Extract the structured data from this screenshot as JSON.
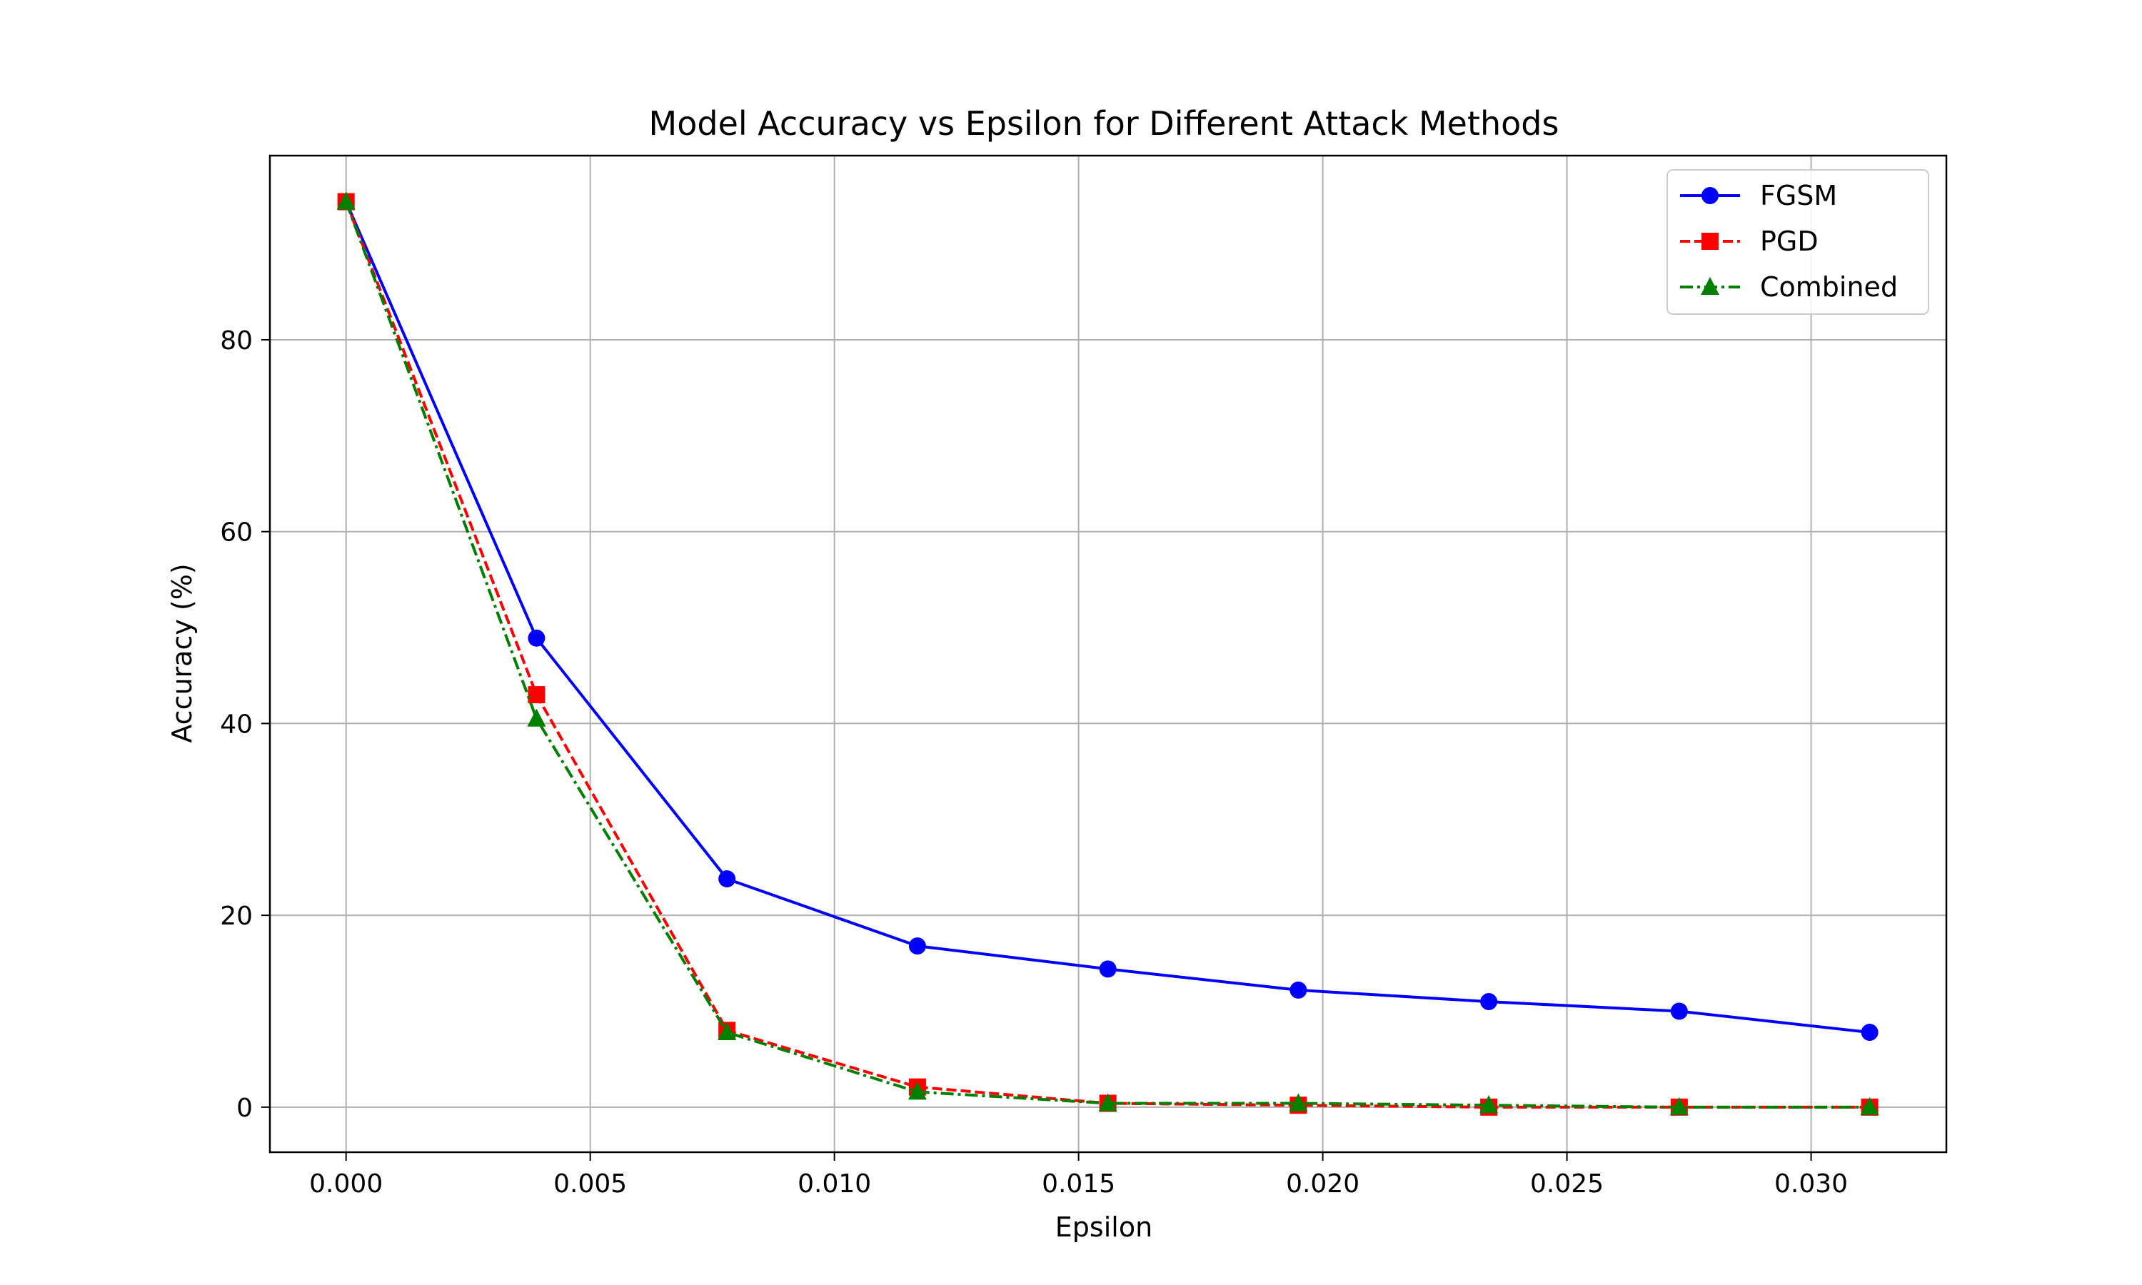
{
  "chart_data": {
    "type": "line",
    "title": "Model Accuracy vs Epsilon for Different Attack Methods",
    "xlabel": "Epsilon",
    "ylabel": "Accuracy (%)",
    "xlim": [
      -0.00156,
      0.03277
    ],
    "ylim": [
      -4.7,
      99.2
    ],
    "xticks": [
      "0.000",
      "0.005",
      "0.010",
      "0.015",
      "0.020",
      "0.025",
      "0.030"
    ],
    "xtick_values": [
      0,
      0.005,
      0.01,
      0.015,
      0.02,
      0.025,
      0.03
    ],
    "yticks": [
      "0",
      "20",
      "40",
      "60",
      "80"
    ],
    "ytick_values": [
      0,
      20,
      40,
      60,
      80
    ],
    "grid": true,
    "legend_position": "top-right",
    "x": [
      0,
      0.0039,
      0.0078,
      0.0117,
      0.0156,
      0.0195,
      0.0234,
      0.0273,
      0.0312
    ],
    "series": [
      {
        "name": "FGSM",
        "color": "#0000ff",
        "marker": "circle",
        "linestyle": "solid",
        "values": [
          94.4,
          48.9,
          23.8,
          16.8,
          14.4,
          12.2,
          11.0,
          10.0,
          7.8
        ]
      },
      {
        "name": "PGD",
        "color": "#ff0000",
        "marker": "square",
        "linestyle": "dashed",
        "values": [
          94.4,
          43.0,
          8.0,
          2.1,
          0.4,
          0.2,
          0.0,
          0.0,
          0.0
        ]
      },
      {
        "name": "Combined",
        "color": "#008000",
        "marker": "triangle",
        "linestyle": "dashdot",
        "values": [
          94.4,
          40.5,
          7.8,
          1.6,
          0.4,
          0.4,
          0.2,
          0.0,
          0.0
        ]
      }
    ]
  }
}
